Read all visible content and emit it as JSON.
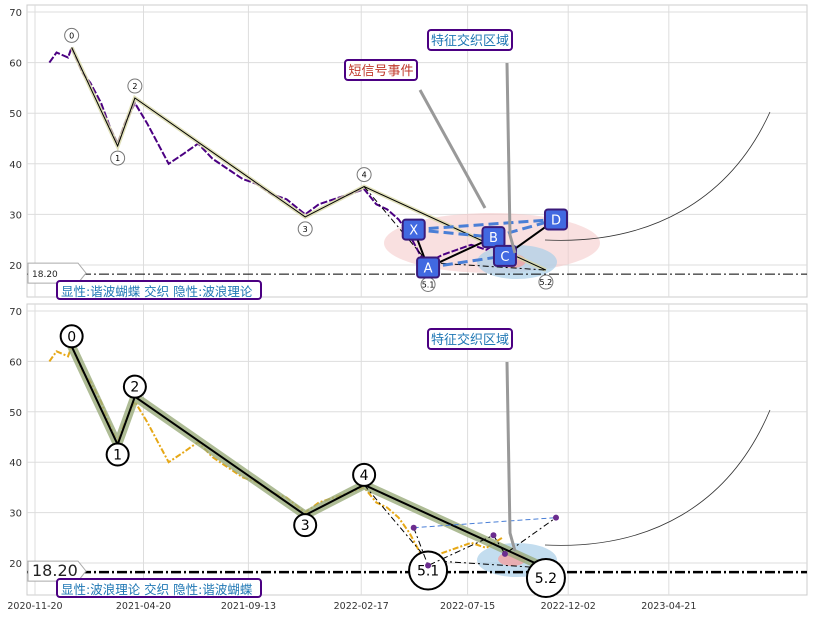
{
  "chart_data": {
    "type": "line",
    "x_ticks": [
      "2020-11-20",
      "2021-04-20",
      "2021-09-13",
      "2022-02-17",
      "2022-07-15",
      "2022-12-02",
      "2023-04-21"
    ],
    "ylim": [
      15,
      71
    ],
    "y_ticks": [
      20,
      30,
      40,
      50,
      60,
      70
    ],
    "grid": true,
    "support_level": 18.2,
    "support_label": "18.20",
    "price": [
      [
        "2020-12-10",
        60
      ],
      [
        "2020-12-20",
        62
      ],
      [
        "2021-01-05",
        61
      ],
      [
        "2021-01-10",
        63
      ],
      [
        "2021-01-25",
        58
      ],
      [
        "2021-02-05",
        56
      ],
      [
        "2021-02-20",
        52
      ],
      [
        "2021-03-05",
        47
      ],
      [
        "2021-03-15",
        44
      ],
      [
        "2021-03-25",
        48
      ],
      [
        "2021-04-08",
        52
      ],
      [
        "2021-04-25",
        48
      ],
      [
        "2021-05-10",
        44
      ],
      [
        "2021-05-25",
        40
      ],
      [
        "2021-06-15",
        42
      ],
      [
        "2021-07-05",
        44
      ],
      [
        "2021-07-25",
        41
      ],
      [
        "2021-08-15",
        39
      ],
      [
        "2021-09-05",
        37
      ],
      [
        "2021-09-25",
        36
      ],
      [
        "2021-10-15",
        34
      ],
      [
        "2021-11-05",
        33
      ],
      [
        "2021-12-01",
        30
      ],
      [
        "2021-12-20",
        32
      ],
      [
        "2022-01-10",
        33
      ],
      [
        "2022-02-01",
        34
      ],
      [
        "2022-02-21",
        35
      ],
      [
        "2022-03-10",
        32
      ],
      [
        "2022-03-25",
        31
      ],
      [
        "2022-04-10",
        29
      ],
      [
        "2022-04-25",
        26
      ],
      [
        "2022-05-10",
        22
      ],
      [
        "2022-05-21",
        20.5
      ],
      [
        "2022-06-10",
        22
      ],
      [
        "2022-06-30",
        23
      ],
      [
        "2022-07-20",
        24
      ],
      [
        "2022-08-10",
        23
      ],
      [
        "2022-09-01",
        25
      ]
    ],
    "wave_points": [
      {
        "label": "0",
        "date": "2021-01-10",
        "value": 63
      },
      {
        "label": "1",
        "date": "2021-03-15",
        "value": 43.5
      },
      {
        "label": "2",
        "date": "2021-04-08",
        "value": 53
      },
      {
        "label": "3",
        "date": "2021-12-01",
        "value": 29.5
      },
      {
        "label": "4",
        "date": "2022-02-21",
        "value": 35.5
      },
      {
        "label": "5.1",
        "date": "2022-05-21",
        "value": 20.5
      },
      {
        "label": "5.2",
        "date": "2022-11-01",
        "value": 19
      }
    ],
    "harmonic_points": [
      {
        "label": "X",
        "date": "2022-05-01",
        "value": 27
      },
      {
        "label": "A",
        "date": "2022-05-21",
        "value": 19.5
      },
      {
        "label": "B",
        "date": "2022-08-20",
        "value": 25.5
      },
      {
        "label": "C",
        "date": "2022-09-05",
        "value": 21.8
      },
      {
        "label": "D",
        "date": "2022-11-15",
        "value": 29
      }
    ],
    "panels": [
      {
        "price_color": "#4b0082",
        "legend": "显性:谐波蝴蝶 交织 隐性:波浪理论",
        "annotations": [
          "特征交织区域",
          "短信号事件"
        ]
      },
      {
        "price_color": "#e6a817",
        "legend": "显性:波浪理论 交织 隐性:谐波蝴蝶",
        "annotations": [
          "特征交织区域"
        ]
      }
    ]
  }
}
